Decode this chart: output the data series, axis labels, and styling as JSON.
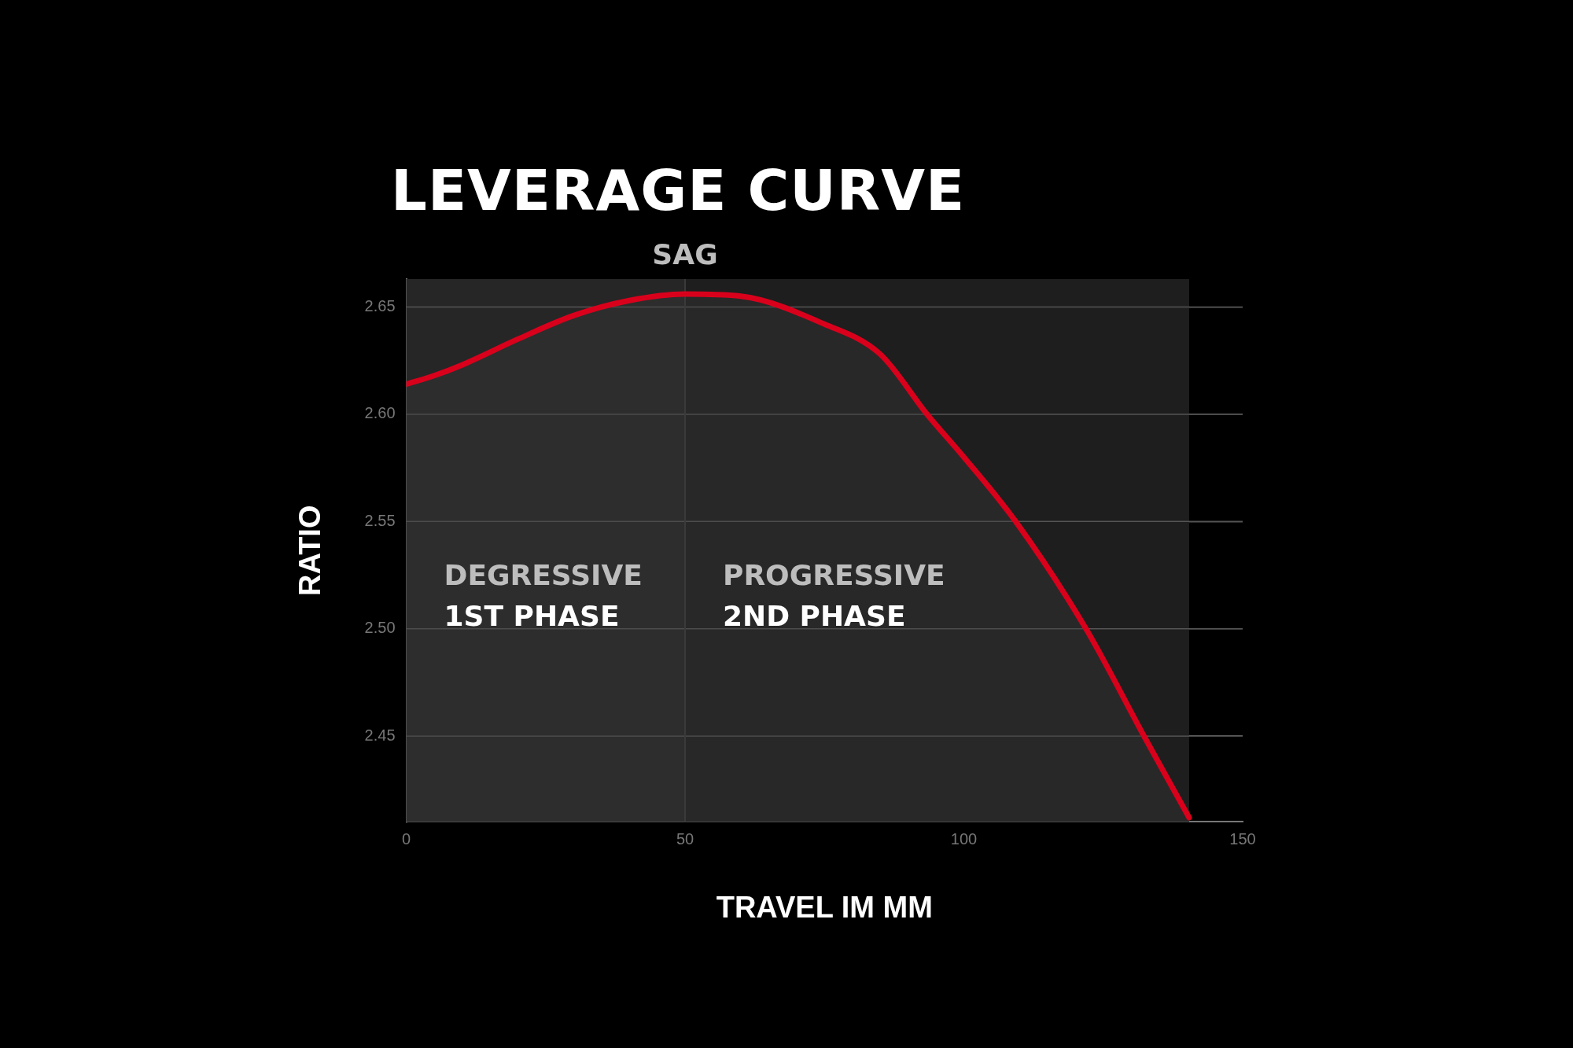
{
  "chart_data": {
    "type": "area",
    "title": "LEVERAGE CURVE",
    "xlabel": "TRAVEL IM MM",
    "ylabel": "RATIO",
    "x": [
      0,
      5,
      10,
      20,
      30,
      40,
      50,
      60,
      75,
      85,
      93.4,
      100,
      109.3,
      121.9,
      132.3,
      140.4
    ],
    "series": [
      {
        "color": "#d9001c",
        "values": [
          2.614,
          2.618,
          2.623,
          2.635,
          2.646,
          2.653,
          2.656,
          2.655,
          2.642,
          2.628,
          2.6,
          2.58,
          2.55,
          2.5,
          2.45,
          2.412
        ]
      }
    ],
    "xlim": [
      0,
      150
    ],
    "xticks": [
      0,
      50,
      100,
      150
    ],
    "ylim": [
      2.41,
      2.663
    ],
    "yticks": [
      {
        "value": 2.45,
        "label": "2.45"
      },
      {
        "value": 2.5,
        "label": "2.50"
      },
      {
        "value": 2.55,
        "label": "2.55"
      },
      {
        "value": 2.6,
        "label": "2.60"
      },
      {
        "value": 2.65,
        "label": "2.65"
      }
    ],
    "grid": "y",
    "legend": false,
    "marker": "none",
    "line_style": "solid",
    "ref_lines": [
      {
        "axis": "x",
        "value": 50,
        "label": "SAG",
        "color": "#3a3a3a"
      }
    ],
    "bands": [
      {
        "axis": "x",
        "from": 0,
        "to": 50,
        "label": "DEGRESSIVE\n1ST PHASE",
        "color": "#262626"
      },
      {
        "axis": "x",
        "from": 50,
        "to": 140.4,
        "label": "PROGRESSIVE\n2ND PHASE",
        "color": "#1e1e1e"
      }
    ]
  }
}
